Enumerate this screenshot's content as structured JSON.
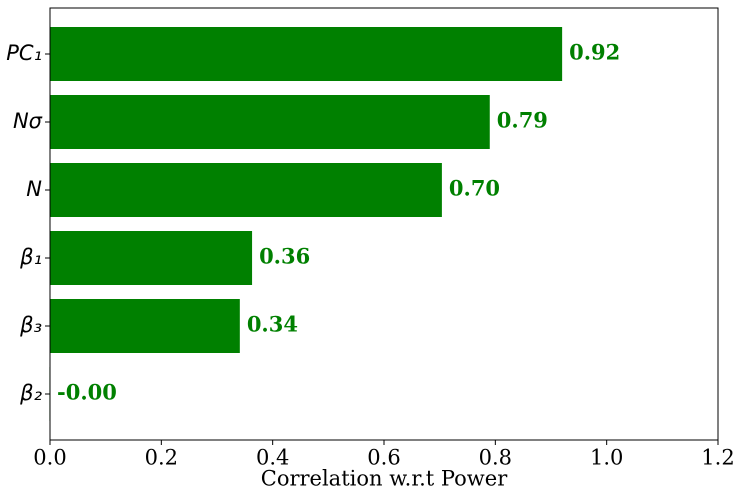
{
  "chart_data": {
    "type": "barh",
    "x_label": "Correlation w.r.t Power",
    "categories": [
      "PC₁",
      "Nσ",
      "N",
      "β₁",
      "β₃",
      "β₂"
    ],
    "values": [
      0.92,
      0.79,
      0.704,
      0.363,
      0.341,
      -0.001
    ],
    "value_labels": [
      "0.92",
      "0.79",
      "0.70",
      "0.36",
      "0.34",
      "-0.00"
    ],
    "color": "#008000",
    "xlim": [
      0,
      1.2
    ],
    "xticks": [
      {
        "value": 0,
        "label": "0.0"
      },
      0.2,
      0.4,
      0.6,
      0.8,
      {
        "value": 1,
        "label": "1.0"
      },
      1.2
    ]
  }
}
